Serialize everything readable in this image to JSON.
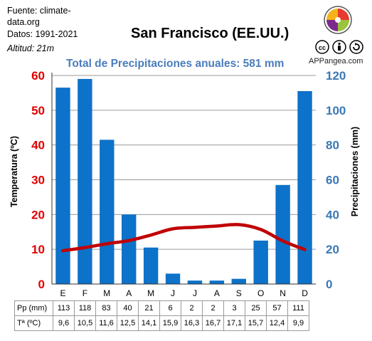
{
  "source": {
    "line1": "Fuente: climate-",
    "line2": "data.org",
    "line3": "Datos: 1991-2021",
    "altitude": "Altitud: 21m"
  },
  "brand": "APPangea.com",
  "license_icons": [
    "cc-icon",
    "attribution-icon",
    "sharealike-icon"
  ],
  "colors": {
    "bars": "#0d72c9",
    "temperature": "#c00000",
    "left_axis": "#e00000",
    "right_axis": "#3a78b5",
    "subtitle": "#4a7ebb"
  },
  "chart_data": {
    "type": "bar",
    "title": "San Francisco (EE.UU.)",
    "subtitle": "Total de Precipitaciones anuales: 581 mm",
    "categories": [
      "E",
      "F",
      "M",
      "A",
      "M",
      "J",
      "J",
      "A",
      "S",
      "O",
      "N",
      "D"
    ],
    "series": [
      {
        "name": "Pp (mm)",
        "type": "bar",
        "axis": "right",
        "values": [
          113,
          118,
          83,
          40,
          21,
          6,
          2,
          2,
          3,
          25,
          57,
          111
        ]
      },
      {
        "name": "Tª (ºC)",
        "type": "line",
        "axis": "left",
        "values": [
          9.6,
          10.5,
          11.6,
          12.5,
          14.1,
          15.9,
          16.3,
          16.7,
          17.1,
          15.7,
          12.4,
          9.9
        ]
      }
    ],
    "left_axis": {
      "label": "Temperatura (ºC)",
      "ylim": [
        0,
        60
      ],
      "ticks": [
        0,
        10,
        20,
        30,
        40,
        50,
        60
      ]
    },
    "right_axis": {
      "label": "Precipitaciones (mm)",
      "ylim": [
        0,
        120
      ],
      "ticks": [
        0,
        20,
        40,
        60,
        80,
        100,
        120
      ]
    },
    "grid": true,
    "table": {
      "pp_label": "Pp (mm)",
      "pp_values": [
        "113",
        "118",
        "83",
        "40",
        "21",
        "6",
        "2",
        "2",
        "3",
        "25",
        "57",
        "111"
      ],
      "t_label": "Tª (ºC)",
      "t_values": [
        "9,6",
        "10,5",
        "11,6",
        "12,5",
        "14,1",
        "15,9",
        "16,3",
        "16,7",
        "17,1",
        "15,7",
        "12,4",
        "9,9"
      ]
    }
  }
}
